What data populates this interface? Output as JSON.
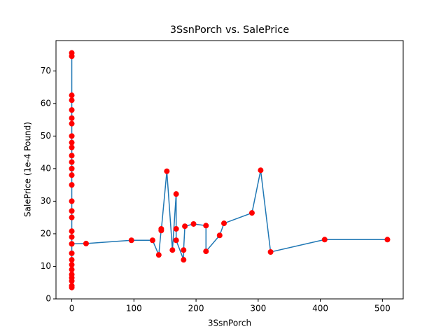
{
  "chart_data": {
    "type": "line",
    "title": "3SsnPorch vs. SalePrice",
    "x_label": "3SsnPorch",
    "y_label": "SalePrice (1e-4 Pound)",
    "x": [
      0,
      0,
      0,
      0,
      0,
      0,
      0,
      0,
      0,
      0,
      0,
      0,
      0,
      0,
      0,
      0,
      0,
      0,
      0,
      0,
      0,
      0,
      0,
      0,
      0,
      0,
      0,
      0,
      0,
      0,
      23,
      96,
      130,
      140,
      144,
      144,
      153,
      162,
      168,
      168,
      168,
      180,
      180,
      182,
      196,
      216,
      216,
      238,
      245,
      290,
      304,
      320,
      407,
      508
    ],
    "series": [
      {
        "name": "SalePrice",
        "color": "#1f77b4",
        "marker_color": "#ff0000",
        "values": [
          20.8,
          75.5,
          3.5,
          62.5,
          7.5,
          55.5,
          12.0,
          48.0,
          4.0,
          61.0,
          25.0,
          58.0,
          9.0,
          44.0,
          35.0,
          5.5,
          50.0,
          14.0,
          42.0,
          30.0,
          53.8,
          6.5,
          38.0,
          46.5,
          74.5,
          10.5,
          40.0,
          27.0,
          19.0,
          16.9,
          17.0,
          18.0,
          18.0,
          13.5,
          21.5,
          21.0,
          39.2,
          15.0,
          32.2,
          21.5,
          18.0,
          12.0,
          15.0,
          22.3,
          23.0,
          22.5,
          14.6,
          19.5,
          23.2,
          26.4,
          39.5,
          14.4,
          18.2,
          18.2
        ]
      }
    ],
    "xlim": [
      -25.4,
      533.4
    ],
    "xticks": [
      0,
      100,
      200,
      300,
      400,
      500
    ],
    "ylim": [
      0,
      79.3
    ],
    "yticks": [
      0,
      10,
      20,
      30,
      40,
      50,
      60,
      70
    ],
    "grid": false
  }
}
